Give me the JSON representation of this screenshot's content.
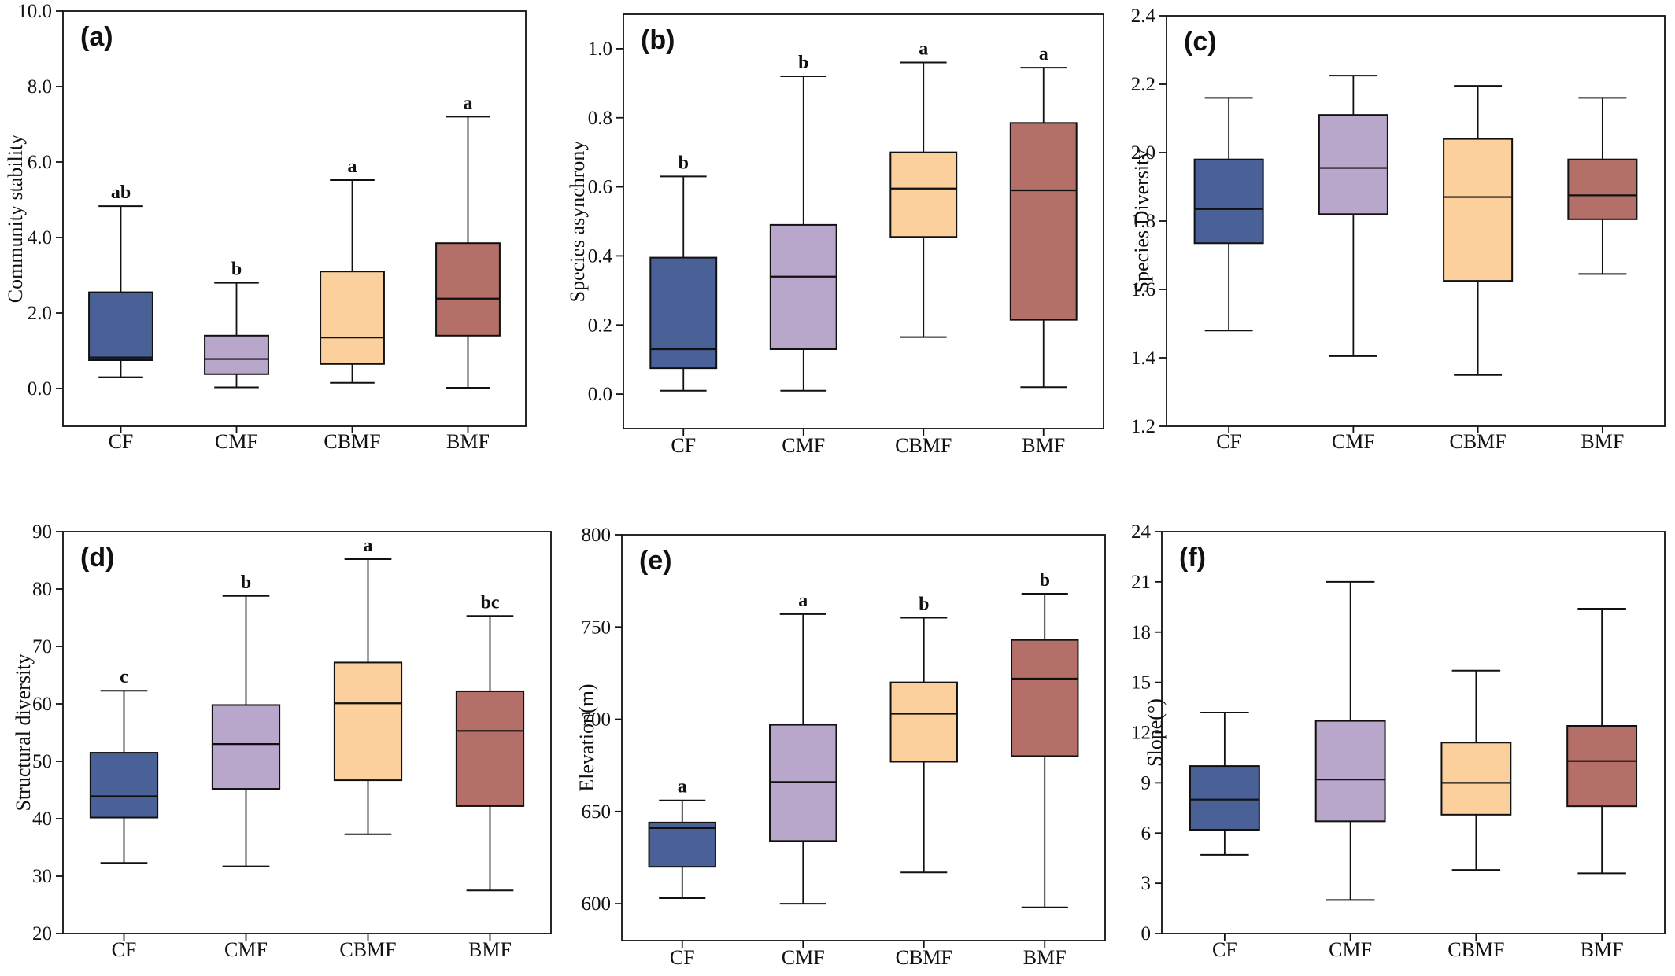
{
  "figure": {
    "colors": {
      "CF": "#4a6198",
      "CMF": "#b8a6cb",
      "CBMF": "#fcd09c",
      "BMF": "#b36f68",
      "stroke": "#111111"
    }
  },
  "chart_data": [
    {
      "type": "box",
      "panel": "(a)",
      "title": "",
      "xlabel": "",
      "ylabel": "Community stability",
      "ylim": [
        -1,
        10
      ],
      "yticks": [
        0.0,
        2.0,
        4.0,
        6.0,
        8.0,
        10.0
      ],
      "ytick_labels": [
        "0.0",
        "2.0",
        "4.0",
        "6.0",
        "8.0",
        "10.0"
      ],
      "categories": [
        "CF",
        "CMF",
        "CBMF",
        "BMF"
      ],
      "legend": "none",
      "grid": false,
      "boxes": [
        {
          "whisker_low": 0.3,
          "q1": 0.75,
          "median": 0.82,
          "q3": 2.55,
          "whisker_high": 4.83,
          "label": "ab"
        },
        {
          "whisker_low": 0.03,
          "q1": 0.38,
          "median": 0.78,
          "q3": 1.4,
          "whisker_high": 2.8,
          "label": "b"
        },
        {
          "whisker_low": 0.15,
          "q1": 0.65,
          "median": 1.35,
          "q3": 3.1,
          "whisker_high": 5.52,
          "label": "a"
        },
        {
          "whisker_low": 0.02,
          "q1": 1.4,
          "median": 2.38,
          "q3": 3.85,
          "whisker_high": 7.2,
          "label": "a"
        }
      ]
    },
    {
      "type": "box",
      "panel": "(b)",
      "title": "",
      "xlabel": "",
      "ylabel": "Species asynchrony",
      "ylim": [
        -0.1,
        1.1
      ],
      "yticks": [
        0.0,
        0.2,
        0.4,
        0.6,
        0.8,
        1.0
      ],
      "ytick_labels": [
        "0.0",
        "0.2",
        "0.4",
        "0.6",
        "0.8",
        "1.0"
      ],
      "categories": [
        "CF",
        "CMF",
        "CBMF",
        "BMF"
      ],
      "legend": "none",
      "grid": false,
      "boxes": [
        {
          "whisker_low": 0.01,
          "q1": 0.075,
          "median": 0.13,
          "q3": 0.395,
          "whisker_high": 0.63,
          "label": "b"
        },
        {
          "whisker_low": 0.01,
          "q1": 0.13,
          "median": 0.34,
          "q3": 0.49,
          "whisker_high": 0.92,
          "label": "b"
        },
        {
          "whisker_low": 0.165,
          "q1": 0.455,
          "median": 0.595,
          "q3": 0.7,
          "whisker_high": 0.96,
          "label": "a"
        },
        {
          "whisker_low": 0.02,
          "q1": 0.215,
          "median": 0.59,
          "q3": 0.785,
          "whisker_high": 0.945,
          "label": "a"
        }
      ]
    },
    {
      "type": "box",
      "panel": "(c)",
      "title": "",
      "xlabel": "",
      "ylabel": "Species Diversity",
      "ylim": [
        1.2,
        2.4
      ],
      "yticks": [
        1.2,
        1.4,
        1.6,
        1.8,
        2.0,
        2.2,
        2.4
      ],
      "ytick_labels": [
        "1.2",
        "1.4",
        "1.6",
        "1.8",
        "2.0",
        "2.2",
        "2.4"
      ],
      "categories": [
        "CF",
        "CMF",
        "CBMF",
        "BMF"
      ],
      "legend": "none",
      "grid": false,
      "boxes": [
        {
          "whisker_low": 1.48,
          "q1": 1.735,
          "median": 1.835,
          "q3": 1.98,
          "whisker_high": 2.16,
          "label": ""
        },
        {
          "whisker_low": 1.405,
          "q1": 1.82,
          "median": 1.955,
          "q3": 2.11,
          "whisker_high": 2.225,
          "label": ""
        },
        {
          "whisker_low": 1.35,
          "q1": 1.625,
          "median": 1.87,
          "q3": 2.04,
          "whisker_high": 2.195,
          "label": ""
        },
        {
          "whisker_low": 1.645,
          "q1": 1.805,
          "median": 1.875,
          "q3": 1.98,
          "whisker_high": 2.16,
          "label": ""
        }
      ]
    },
    {
      "type": "box",
      "panel": "(d)",
      "title": "",
      "xlabel": "",
      "ylabel": "Structural diversity",
      "ylim": [
        20,
        90
      ],
      "yticks": [
        20,
        30,
        40,
        50,
        60,
        70,
        80,
        90
      ],
      "ytick_labels": [
        "20",
        "30",
        "40",
        "50",
        "60",
        "70",
        "80",
        "90"
      ],
      "categories": [
        "CF",
        "CMF",
        "CBMF",
        "BMF"
      ],
      "legend": "none",
      "grid": false,
      "boxes": [
        {
          "whisker_low": 32.3,
          "q1": 40.2,
          "median": 43.9,
          "q3": 51.5,
          "whisker_high": 62.3,
          "label": "c"
        },
        {
          "whisker_low": 31.7,
          "q1": 45.2,
          "median": 53.0,
          "q3": 59.8,
          "whisker_high": 78.8,
          "label": "b"
        },
        {
          "whisker_low": 37.3,
          "q1": 46.7,
          "median": 60.1,
          "q3": 67.2,
          "whisker_high": 85.2,
          "label": "a"
        },
        {
          "whisker_low": 27.5,
          "q1": 42.2,
          "median": 55.3,
          "q3": 62.2,
          "whisker_high": 75.3,
          "label": "bc"
        }
      ]
    },
    {
      "type": "box",
      "panel": "(e)",
      "title": "",
      "xlabel": "",
      "ylabel": "Elevation(m)",
      "ylim": [
        580,
        800
      ],
      "yticks": [
        600,
        650,
        700,
        750,
        800
      ],
      "ytick_labels": [
        "600",
        "650",
        "700",
        "750",
        "800"
      ],
      "categories": [
        "CF",
        "CMF",
        "CBMF",
        "BMF"
      ],
      "legend": "none",
      "grid": false,
      "boxes": [
        {
          "whisker_low": 603,
          "q1": 620,
          "median": 641,
          "q3": 644,
          "whisker_high": 656,
          "label": "a"
        },
        {
          "whisker_low": 600,
          "q1": 634,
          "median": 666,
          "q3": 697,
          "whisker_high": 757,
          "label": "a"
        },
        {
          "whisker_low": 617,
          "q1": 677,
          "median": 703,
          "q3": 720,
          "whisker_high": 755,
          "label": "b"
        },
        {
          "whisker_low": 598,
          "q1": 680,
          "median": 722,
          "q3": 743,
          "whisker_high": 768,
          "label": "b"
        }
      ]
    },
    {
      "type": "box",
      "panel": "(f)",
      "title": "",
      "xlabel": "",
      "ylabel": "Slope(°)",
      "ylim": [
        0,
        24
      ],
      "yticks": [
        0,
        3,
        6,
        9,
        12,
        15,
        18,
        21,
        24
      ],
      "ytick_labels": [
        "0",
        "3",
        "6",
        "9",
        "12",
        "15",
        "18",
        "21",
        "24"
      ],
      "categories": [
        "CF",
        "CMF",
        "CBMF",
        "BMF"
      ],
      "legend": "none",
      "grid": false,
      "boxes": [
        {
          "whisker_low": 4.7,
          "q1": 6.2,
          "median": 8.0,
          "q3": 10.0,
          "whisker_high": 13.2,
          "label": ""
        },
        {
          "whisker_low": 2.0,
          "q1": 6.7,
          "median": 9.2,
          "q3": 12.7,
          "whisker_high": 21.0,
          "label": ""
        },
        {
          "whisker_low": 3.8,
          "q1": 7.1,
          "median": 9.0,
          "q3": 11.4,
          "whisker_high": 15.7,
          "label": ""
        },
        {
          "whisker_low": 3.6,
          "q1": 7.6,
          "median": 10.3,
          "q3": 12.4,
          "whisker_high": 19.4,
          "label": ""
        }
      ]
    }
  ]
}
